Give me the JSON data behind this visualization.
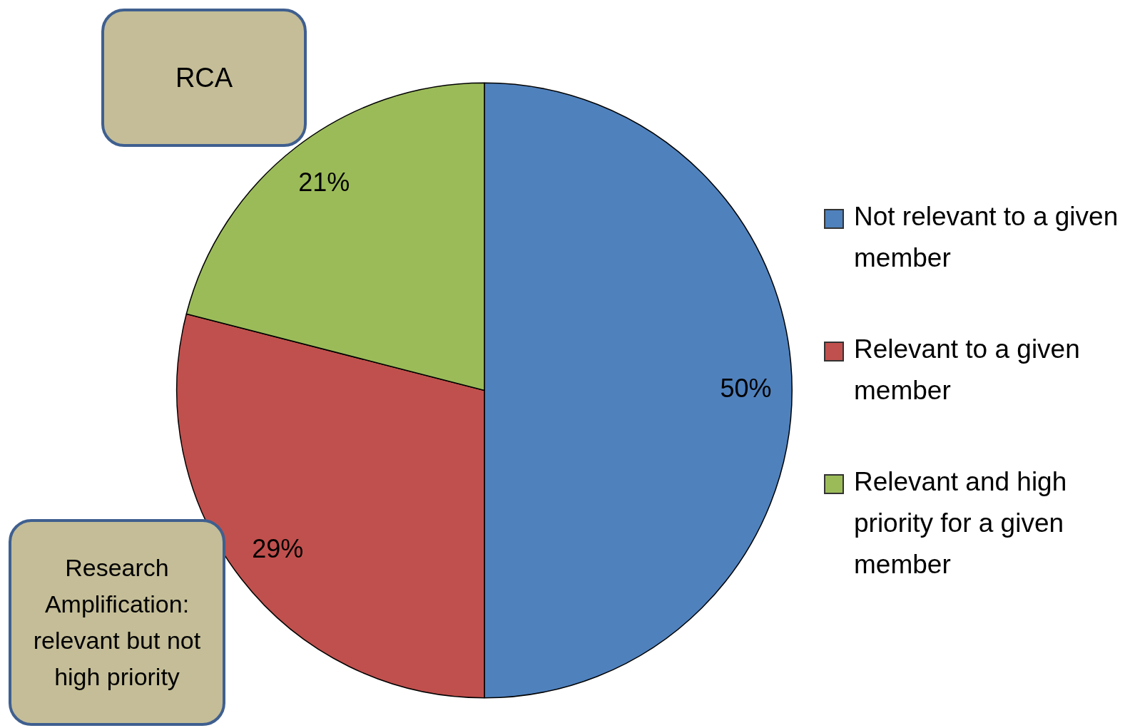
{
  "chart_data": {
    "type": "pie",
    "categories": [
      "Not relevant to a given member",
      "Relevant to a given member",
      "Relevant and high priority for a given member"
    ],
    "values": [
      50,
      29,
      21
    ],
    "colors": [
      "#4f81bd",
      "#c0504d",
      "#9bbb59"
    ],
    "value_labels": [
      "50%",
      "29%",
      "21%"
    ],
    "legend": "right",
    "annotations": [
      "RCA",
      "Research Amplification: relevant but not high priority"
    ]
  }
}
